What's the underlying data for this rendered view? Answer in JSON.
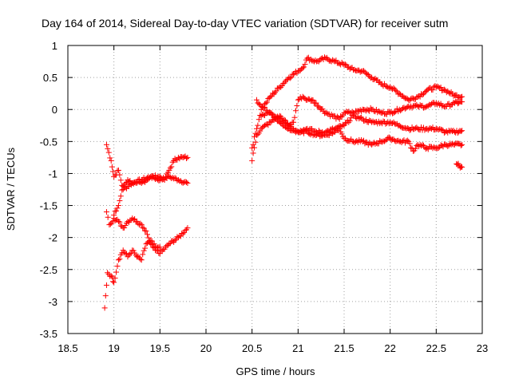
{
  "chart_data": {
    "type": "scatter",
    "title": "Day 164 of 2014, Sidereal Day-to-day VTEC variation (SDTVAR) for receiver sutm",
    "xlabel": "GPS time / hours",
    "ylabel": "SDTVAR / TECUs",
    "xlim": [
      18.5,
      23
    ],
    "ylim": [
      -3.5,
      1
    ],
    "xticks": [
      "18.5",
      "19",
      "19.5",
      "20",
      "20.5",
      "21",
      "21.5",
      "22",
      "22.5",
      "23"
    ],
    "yticks": [
      "1",
      "0.5",
      "0",
      "-0.5",
      "-1",
      "-1.5",
      "-2",
      "-2.5",
      "-3",
      "-3.5"
    ],
    "grid": true,
    "marker": "+",
    "color": "#ff0000",
    "segments": [
      {
        "name": "early-upper",
        "x": [
          18.92,
          18.97,
          19.0,
          19.05,
          19.1,
          19.2,
          19.3,
          19.4,
          19.5,
          19.6,
          19.7,
          19.8
        ],
        "y": [
          -0.55,
          -0.8,
          -1.05,
          -0.95,
          -1.25,
          -1.15,
          -1.1,
          -1.05,
          -1.1,
          -1.05,
          -1.1,
          -1.15
        ]
      },
      {
        "name": "early-upper-b",
        "x": [
          19.0,
          19.05,
          19.1,
          19.15,
          19.2,
          19.3,
          19.4,
          19.5,
          19.55,
          19.6,
          19.65,
          19.7,
          19.75,
          19.8
        ],
        "y": [
          -1.65,
          -1.5,
          -1.2,
          -1.1,
          -1.15,
          -1.15,
          -1.05,
          -1.05,
          -1.1,
          -0.95,
          -0.8,
          -0.75,
          -0.75,
          -0.75
        ]
      },
      {
        "name": "early-middle",
        "x": [
          18.92,
          18.95,
          19.0,
          19.05,
          19.1,
          19.15,
          19.2,
          19.25,
          19.3,
          19.35,
          19.4,
          19.45,
          19.5
        ],
        "y": [
          -1.6,
          -1.8,
          -1.7,
          -1.75,
          -1.85,
          -1.75,
          -1.7,
          -1.75,
          -1.8,
          -1.9,
          -2.1,
          -2.2,
          -2.15
        ]
      },
      {
        "name": "early-lower",
        "x": [
          18.9,
          18.93,
          18.97,
          19.0,
          19.05,
          19.1,
          19.15,
          19.2,
          19.25,
          19.3,
          19.35,
          19.4,
          19.5,
          19.6,
          19.7,
          19.8
        ],
        "y": [
          -3.1,
          -2.55,
          -2.6,
          -2.7,
          -2.35,
          -2.2,
          -2.3,
          -2.2,
          -2.3,
          -2.35,
          -2.1,
          -2.05,
          -2.25,
          -2.1,
          -2.0,
          -1.85
        ]
      },
      {
        "name": "late-a",
        "x": [
          20.5,
          20.55,
          20.6,
          20.65,
          20.7,
          20.8,
          20.9,
          21.0,
          21.05,
          21.1,
          21.2,
          21.3,
          21.4,
          21.5,
          21.6,
          21.7,
          21.8,
          21.9,
          22.0,
          22.1,
          22.2,
          22.3,
          22.4,
          22.5,
          22.6,
          22.7,
          22.78
        ],
        "y": [
          -0.6,
          -0.3,
          0.0,
          0.1,
          0.2,
          0.35,
          0.5,
          0.6,
          0.65,
          0.8,
          0.75,
          0.8,
          0.75,
          0.7,
          0.62,
          0.6,
          0.5,
          0.4,
          0.35,
          0.25,
          0.15,
          0.2,
          0.3,
          0.35,
          0.3,
          0.22,
          0.2
        ]
      },
      {
        "name": "late-b",
        "x": [
          20.55,
          20.6,
          20.7,
          20.8,
          20.9,
          20.95,
          21.0,
          21.05,
          21.1,
          21.15,
          21.3,
          21.45,
          21.5,
          21.6,
          21.7,
          21.8,
          21.9,
          22.0,
          22.1,
          22.2,
          22.3,
          22.4,
          22.5,
          22.6,
          22.7,
          22.78
        ],
        "y": [
          0.15,
          0.05,
          -0.05,
          -0.15,
          -0.25,
          -0.2,
          0.15,
          0.2,
          0.15,
          0.15,
          -0.05,
          -0.15,
          -0.05,
          -0.05,
          0.0,
          0.0,
          -0.05,
          -0.05,
          0.0,
          0.05,
          0.05,
          0.05,
          0.1,
          0.05,
          0.1,
          0.12
        ]
      },
      {
        "name": "late-c",
        "x": [
          20.6,
          20.7,
          20.8,
          20.9,
          21.0,
          21.1,
          21.2,
          21.3,
          21.4,
          21.5,
          21.6,
          21.7,
          21.8,
          21.9,
          22.0,
          22.1,
          22.2,
          22.3,
          22.4,
          22.5,
          22.6,
          22.7,
          22.78
        ],
        "y": [
          -0.1,
          -0.05,
          -0.2,
          -0.3,
          -0.35,
          -0.3,
          -0.35,
          -0.35,
          -0.3,
          -0.25,
          -0.1,
          -0.15,
          -0.2,
          -0.2,
          -0.2,
          -0.25,
          -0.3,
          -0.3,
          -0.3,
          -0.3,
          -0.35,
          -0.35,
          -0.33
        ]
      },
      {
        "name": "late-d",
        "x": [
          20.5,
          20.55,
          20.6,
          20.7,
          20.8,
          20.9,
          21.0,
          21.1,
          21.2,
          21.3,
          21.4,
          21.45,
          21.5,
          21.6,
          21.7,
          21.8,
          21.9,
          22.0,
          22.1,
          22.2,
          22.25,
          22.3,
          22.4,
          22.5,
          22.6,
          22.7,
          22.78
        ],
        "y": [
          -0.8,
          -0.4,
          -0.3,
          -0.2,
          -0.1,
          -0.25,
          -0.35,
          -0.35,
          -0.4,
          -0.4,
          -0.35,
          -0.3,
          -0.45,
          -0.5,
          -0.5,
          -0.55,
          -0.5,
          -0.45,
          -0.5,
          -0.5,
          -0.65,
          -0.55,
          -0.6,
          -0.6,
          -0.55,
          -0.55,
          -0.55
        ]
      },
      {
        "name": "late-e",
        "x": [
          22.72,
          22.75,
          22.78
        ],
        "y": [
          -0.85,
          -0.88,
          -0.9
        ]
      }
    ]
  }
}
